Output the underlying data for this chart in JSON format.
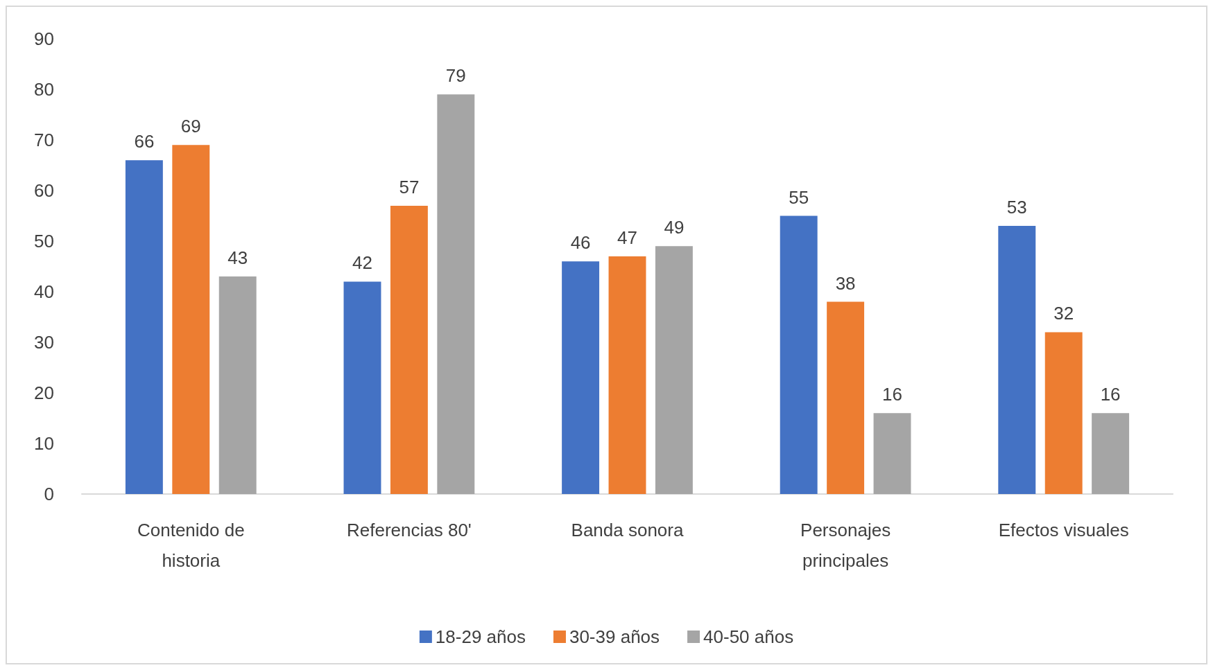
{
  "chart_data": {
    "type": "bar",
    "categories": [
      "Contenido de\nhistoria",
      "Referencias 80'",
      "Banda sonora",
      "Personajes\nprincipales",
      "Efectos visuales"
    ],
    "series": [
      {
        "name": "18-29 años",
        "color": "#4472c4",
        "values": [
          66,
          42,
          46,
          55,
          53
        ]
      },
      {
        "name": "30-39 años",
        "color": "#ed7d31",
        "values": [
          69,
          57,
          47,
          38,
          32
        ]
      },
      {
        "name": "40-50 años",
        "color": "#a5a5a5",
        "values": [
          43,
          79,
          49,
          16,
          16
        ]
      }
    ],
    "ylim": [
      0,
      90
    ],
    "yticks": [
      0,
      10,
      20,
      30,
      40,
      50,
      60,
      70,
      80,
      90
    ],
    "grid": false,
    "legend": "bottom",
    "data_labels": true
  }
}
